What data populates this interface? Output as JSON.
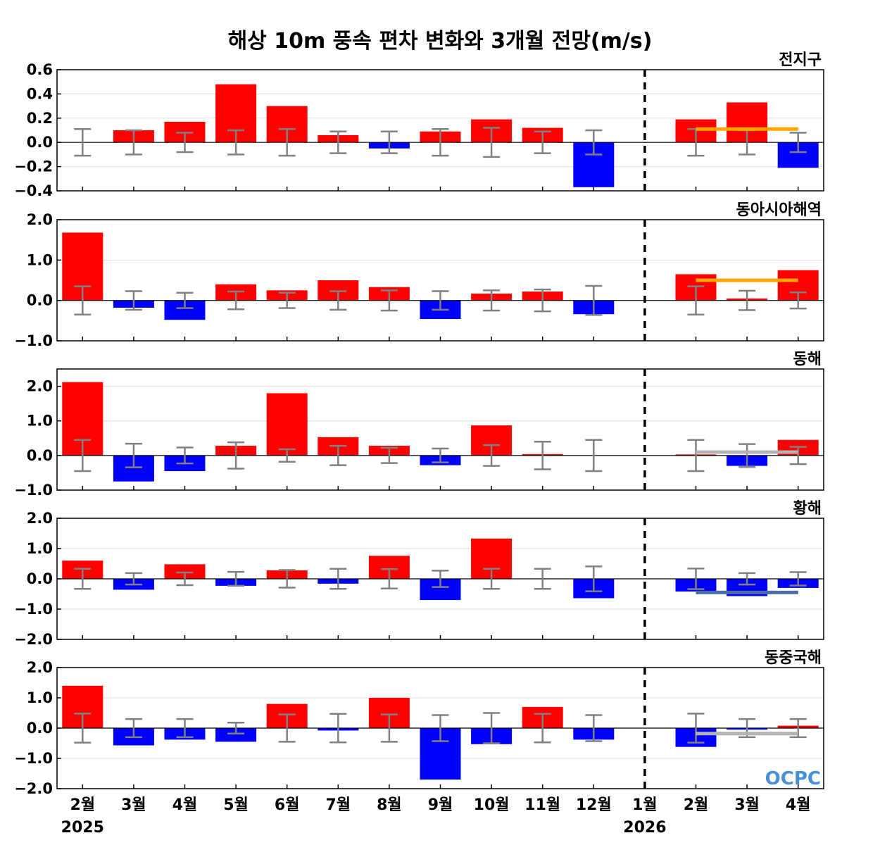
{
  "title": "해상 10m 풍속 편차 변화와 3개월 전망(m/s)",
  "logo": "OCPC",
  "chart_data": {
    "type": "bar",
    "categories": [
      "2월",
      "3월",
      "4월",
      "5월",
      "6월",
      "7월",
      "8월",
      "9월",
      "10월",
      "11월",
      "12월",
      "1월",
      "2월",
      "3월",
      "4월"
    ],
    "year_labels": [
      {
        "category_index": 0,
        "text": "2025"
      },
      {
        "category_index": 11,
        "text": "2026"
      }
    ],
    "divider_after_category_index": 11,
    "colors": {
      "positive": "#ff0000",
      "negative": "#0000ff",
      "errorbar": "#808080",
      "zero_line": "#000000"
    },
    "panels": [
      {
        "label": "전지구",
        "ylim": [
          -0.4,
          0.6
        ],
        "yticks": [
          -0.4,
          -0.2,
          0.0,
          0.2,
          0.4,
          0.6
        ],
        "ytick_labels": [
          "−0.4",
          "−0.2",
          "0.0",
          "0.2",
          "0.4",
          "0.6"
        ],
        "values": [
          0.0,
          0.1,
          0.17,
          0.48,
          0.3,
          0.06,
          -0.05,
          0.09,
          0.19,
          0.12,
          -0.37,
          0.0,
          0.19,
          0.33,
          -0.21
        ],
        "error": [
          0.11,
          0.1,
          0.08,
          0.1,
          0.11,
          0.09,
          0.09,
          0.11,
          0.12,
          0.09,
          0.1,
          0.0,
          0.11,
          0.1,
          0.08
        ],
        "outlook": {
          "start_index": 12,
          "end_index": 14,
          "value": 0.11,
          "color": "#ffa500"
        }
      },
      {
        "label": "동아시아해역",
        "ylim": [
          -1.0,
          2.0
        ],
        "yticks": [
          -1.0,
          0.0,
          1.0,
          2.0
        ],
        "ytick_labels": [
          "−1.0",
          "0.0",
          "1.0",
          "2.0"
        ],
        "values": [
          1.68,
          -0.18,
          -0.48,
          0.4,
          0.25,
          0.5,
          0.33,
          -0.46,
          0.17,
          0.22,
          -0.34,
          0.0,
          0.65,
          0.05,
          0.75
        ],
        "error": [
          0.35,
          0.23,
          0.19,
          0.22,
          0.19,
          0.23,
          0.25,
          0.23,
          0.25,
          0.27,
          0.36,
          0.0,
          0.35,
          0.24,
          0.2
        ],
        "outlook": {
          "start_index": 12,
          "end_index": 14,
          "value": 0.5,
          "color": "#ffa500"
        }
      },
      {
        "label": "동해",
        "ylim": [
          -1.0,
          2.5
        ],
        "yticks": [
          -1.0,
          0.0,
          1.0,
          2.0
        ],
        "ytick_labels": [
          "−1.0",
          "0.0",
          "1.0",
          "2.0"
        ],
        "values": [
          2.12,
          -0.75,
          -0.45,
          0.28,
          1.8,
          0.53,
          0.28,
          -0.28,
          0.87,
          0.04,
          0.0,
          0.0,
          0.03,
          -0.3,
          0.45
        ],
        "error": [
          0.45,
          0.34,
          0.23,
          0.38,
          0.18,
          0.28,
          0.22,
          0.2,
          0.3,
          0.4,
          0.45,
          0.0,
          0.45,
          0.33,
          0.25
        ],
        "outlook": {
          "start_index": 12,
          "end_index": 14,
          "value": 0.1,
          "color": "#b3b3b3"
        }
      },
      {
        "label": "황해",
        "ylim": [
          -2.0,
          2.0
        ],
        "yticks": [
          -2.0,
          -1.0,
          0.0,
          1.0,
          2.0
        ],
        "ytick_labels": [
          "−2.0",
          "−1.0",
          "0.0",
          "1.0",
          "2.0"
        ],
        "values": [
          0.6,
          -0.36,
          0.48,
          -0.23,
          0.28,
          -0.16,
          0.76,
          -0.7,
          1.33,
          0.0,
          -0.64,
          0.0,
          -0.42,
          -0.57,
          -0.3
        ],
        "error": [
          0.33,
          0.19,
          0.21,
          0.23,
          0.29,
          0.33,
          0.32,
          0.27,
          0.33,
          0.33,
          0.41,
          0.0,
          0.34,
          0.19,
          0.22
        ],
        "outlook": {
          "start_index": 12,
          "end_index": 14,
          "value": -0.45,
          "color": "#4a6da7"
        }
      },
      {
        "label": "동중국해",
        "ylim": [
          -2.0,
          2.0
        ],
        "yticks": [
          -2.0,
          -1.0,
          0.0,
          1.0,
          2.0
        ],
        "ytick_labels": [
          "−2.0",
          "−1.0",
          "0.0",
          "1.0",
          "2.0"
        ],
        "values": [
          1.4,
          -0.57,
          -0.38,
          -0.45,
          0.8,
          -0.08,
          1.0,
          -1.7,
          -0.53,
          0.7,
          -0.38,
          0.0,
          -0.62,
          -0.05,
          0.08
        ],
        "error": [
          0.48,
          0.3,
          0.3,
          0.18,
          0.45,
          0.47,
          0.45,
          0.43,
          0.5,
          0.47,
          0.43,
          0.0,
          0.48,
          0.3,
          0.3
        ],
        "outlook": {
          "start_index": 12,
          "end_index": 14,
          "value": -0.18,
          "color": "#b3b3b3"
        }
      }
    ]
  }
}
